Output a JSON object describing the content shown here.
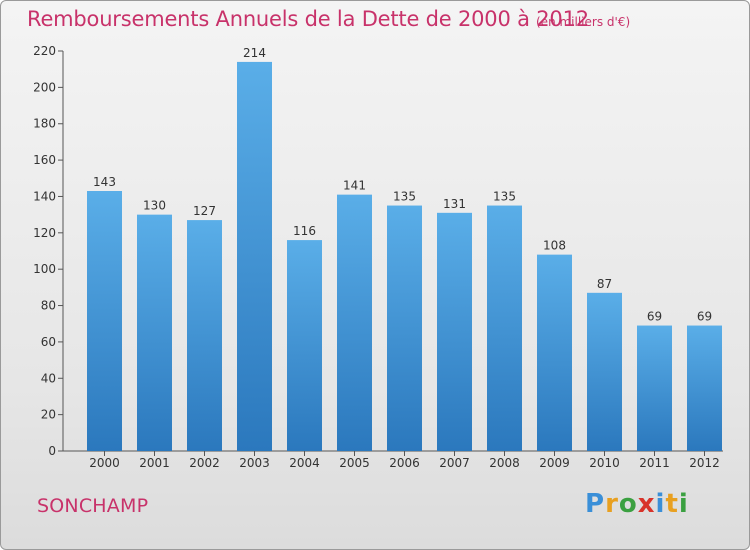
{
  "title": "Remboursements Annuels de la Dette de 2000 à 2012",
  "subtitle": "(en milliers d'€)",
  "commune": "SONCHAMP",
  "logo": {
    "text": "Proxiti",
    "letters": [
      {
        "ch": "P",
        "color": "#3a8fd8"
      },
      {
        "ch": "r",
        "color": "#e8a020"
      },
      {
        "ch": "o",
        "color": "#3aa040"
      },
      {
        "ch": "x",
        "color": "#d8332a"
      },
      {
        "ch": "i",
        "color": "#3a8fd8"
      },
      {
        "ch": "t",
        "color": "#e8a020"
      },
      {
        "ch": "i",
        "color": "#3aa040"
      }
    ]
  },
  "colors": {
    "text_accent": "#c8326a",
    "bar_top": "#5aaee8",
    "bar_bottom": "#2b78bd"
  },
  "chart_data": {
    "type": "bar",
    "title": "Remboursements Annuels de la Dette de 2000 à 2012",
    "subtitle": "(en milliers d'€)",
    "categories": [
      "2000",
      "2001",
      "2002",
      "2003",
      "2004",
      "2005",
      "2006",
      "2007",
      "2008",
      "2009",
      "2010",
      "2011",
      "2012"
    ],
    "values": [
      143,
      130,
      127,
      214,
      116,
      141,
      135,
      131,
      135,
      108,
      87,
      69,
      69
    ],
    "ylim": [
      0,
      220
    ],
    "yticks": [
      0,
      20,
      40,
      60,
      80,
      100,
      120,
      140,
      160,
      180,
      200,
      220
    ],
    "grid": false,
    "data_labels": true
  }
}
